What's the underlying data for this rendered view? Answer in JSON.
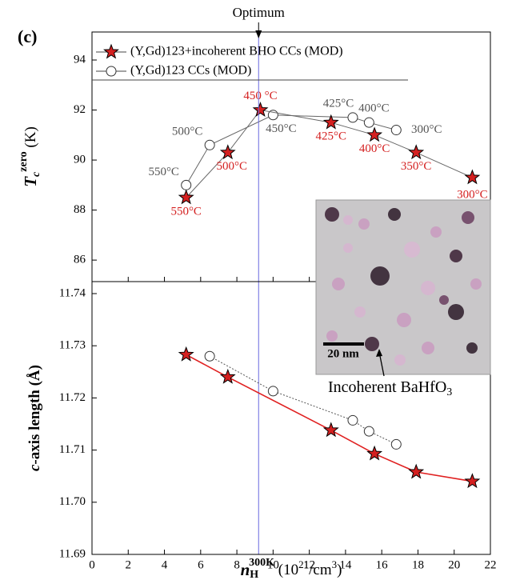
{
  "chart_data": [
    {
      "type": "line",
      "panel_label": "(c)",
      "optimum": {
        "label": "Optimum",
        "x": 9.2
      },
      "y_label_parts": [
        "T",
        "c",
        "zero",
        " (K)"
      ],
      "xlim": [
        0,
        22
      ],
      "xticks": [
        0,
        2,
        4,
        6,
        8,
        10,
        12,
        14,
        16,
        18,
        20,
        22
      ],
      "ylim": [
        85.14,
        95.12
      ],
      "yticks": [
        86,
        88,
        90,
        92,
        94
      ],
      "legend": "upper left",
      "series": [
        {
          "name": "(Y,Gd)123+incoherent BHO CCs (MOD)",
          "marker": "star",
          "color": "#d42020",
          "line_color": "#666666",
          "label_color": "#d42020",
          "x": [
            5.2,
            7.5,
            9.3,
            13.2,
            15.6,
            17.9,
            21.0
          ],
          "values": [
            88.5,
            90.3,
            92.0,
            91.5,
            91.0,
            90.3,
            89.3
          ],
          "point_labels": [
            "550°C",
            "500°C",
            "450 °C",
            "425°C",
            "400°C",
            "350°C",
            "300°C"
          ]
        },
        {
          "name": "(Y,Gd)123 CCs (MOD)",
          "marker": "circle",
          "color": "#ffffff",
          "line_color": "#666666",
          "label_color": "#555555",
          "x": [
            5.2,
            6.5,
            10.0,
            14.4,
            15.3,
            16.8
          ],
          "values": [
            89.0,
            90.6,
            91.8,
            91.7,
            91.5,
            91.2
          ],
          "point_labels": [
            "550°C",
            "500°C",
            "450°C",
            "425°C",
            "400°C",
            "300°C"
          ]
        }
      ]
    },
    {
      "type": "line",
      "y_label_parts": [
        "c",
        "-axis length (Å)"
      ],
      "x_label_parts": [
        "n",
        "H",
        "300K",
        " (10",
        "21",
        "/cm",
        "3",
        ")"
      ],
      "xlim": [
        0,
        22
      ],
      "xticks": [
        0,
        2,
        4,
        6,
        8,
        10,
        12,
        14,
        16,
        18,
        20,
        22
      ],
      "ylim": [
        11.69,
        11.7423
      ],
      "yticks": [
        {
          "value": 11.69,
          "label": "11.69"
        },
        {
          "value": 11.7,
          "label": "11.70"
        },
        {
          "value": 11.71,
          "label": "11.71"
        },
        {
          "value": 11.72,
          "label": "11.72"
        },
        {
          "value": 11.73,
          "label": "11.73"
        },
        {
          "value": 11.74,
          "label": "11.74"
        }
      ],
      "inset": {
        "scale_bar": "20 nm",
        "annotation_parts": [
          "Incoherent BaHfO",
          "3"
        ]
      },
      "series": [
        {
          "name": "(Y,Gd)123+incoherent BHO CCs (MOD)",
          "marker": "star",
          "color": "#d42020",
          "line_color": "#e02020",
          "x": [
            5.2,
            7.5,
            13.2,
            15.6,
            17.9,
            21.0
          ],
          "values": [
            11.7283,
            11.724,
            11.7138,
            11.7093,
            11.7058,
            11.704
          ]
        },
        {
          "name": "(Y,Gd)123 CCs (MOD)",
          "marker": "circle",
          "color": "#ffffff",
          "line_color": "#555555",
          "x": [
            6.5,
            10.0,
            14.4,
            15.3,
            16.8
          ],
          "values": [
            11.728,
            11.7213,
            11.7157,
            11.7136,
            11.7111
          ]
        }
      ]
    }
  ]
}
